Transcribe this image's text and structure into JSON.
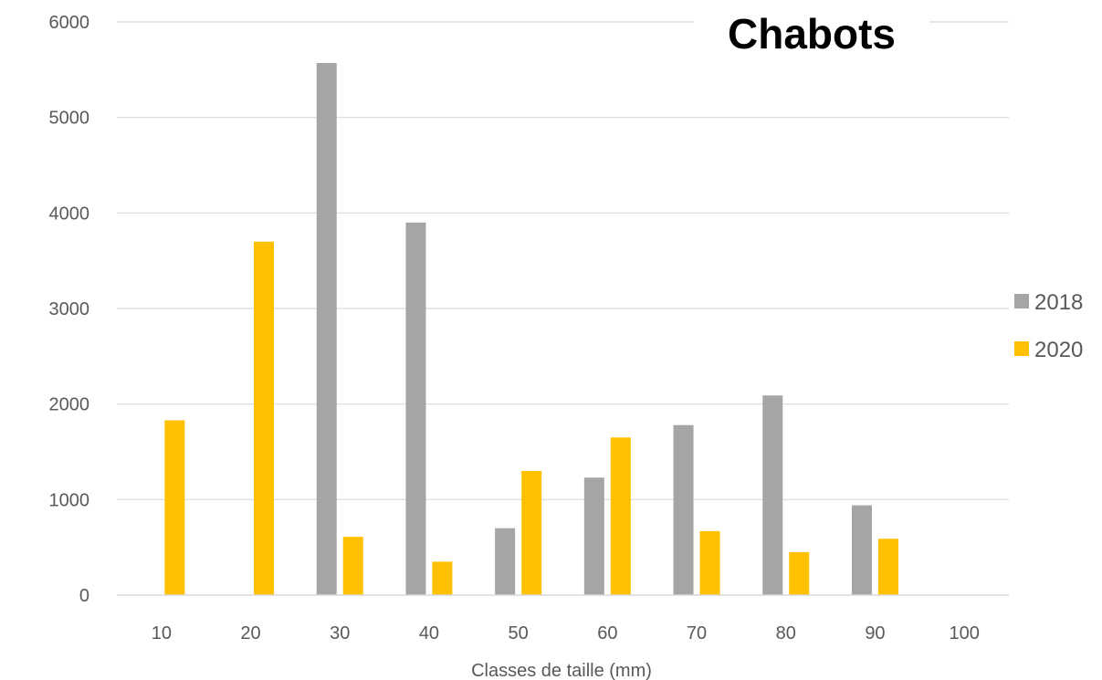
{
  "chart_data": {
    "type": "bar",
    "title": "Chabots",
    "xlabel": "Classes de taille (mm)",
    "ylabel": "",
    "categories": [
      "10",
      "20",
      "30",
      "40",
      "50",
      "60",
      "70",
      "80",
      "90",
      "100"
    ],
    "series": [
      {
        "name": "2018",
        "color": "#a5a5a5",
        "values": [
          0,
          0,
          5570,
          3900,
          700,
          1230,
          1780,
          2090,
          940,
          0
        ]
      },
      {
        "name": "2020",
        "color": "#ffc000",
        "values": [
          1830,
          3700,
          610,
          350,
          1300,
          1650,
          670,
          450,
          590,
          0
        ]
      }
    ],
    "ylim": [
      0,
      6000
    ],
    "yticks": [
      0,
      1000,
      2000,
      3000,
      4000,
      5000,
      6000
    ],
    "grid": true,
    "legend_position": "right"
  }
}
